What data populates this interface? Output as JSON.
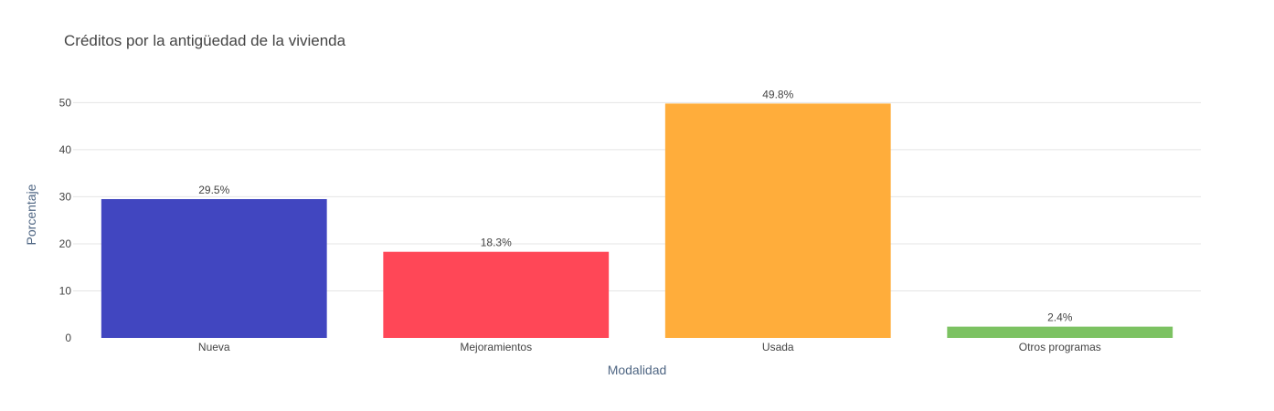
{
  "chart_data": {
    "type": "bar",
    "title": "Créditos por la antigüedad de la vivienda",
    "xlabel": "Modalidad",
    "ylabel": "Porcentaje",
    "categories": [
      "Nueva",
      "Mejoramientos",
      "Usada",
      "Otros programas"
    ],
    "values": [
      29.5,
      18.3,
      49.8,
      2.4
    ],
    "data_labels": [
      "29.5%",
      "18.3%",
      "49.8%",
      "2.4%"
    ],
    "colors": [
      "#4146c0",
      "#ff4757",
      "#ffad3b",
      "#7cc262"
    ],
    "ylim": [
      0,
      52.4
    ],
    "yticks": [
      0,
      10,
      20,
      30,
      40,
      50
    ],
    "grid": true,
    "legend": "none"
  }
}
